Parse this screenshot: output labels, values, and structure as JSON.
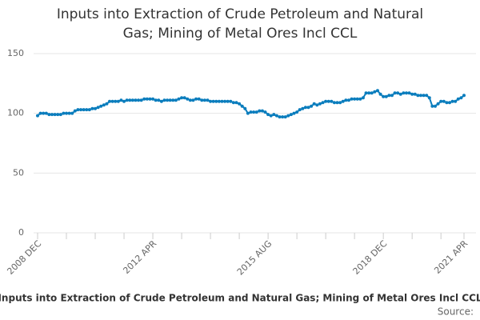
{
  "chart_data": {
    "type": "line",
    "title": "Inputs into Extraction of Crude Petroleum and Natural Gas; Mining of Metal Ores Incl CCL",
    "source": "Source:",
    "categories": [
      "2008 DEC",
      null,
      null,
      null,
      null,
      null,
      null,
      null,
      null,
      null,
      null,
      null,
      null,
      null,
      null,
      null,
      null,
      null,
      null,
      null,
      null,
      null,
      null,
      null,
      null,
      null,
      null,
      null,
      null,
      null,
      null,
      null,
      null,
      null,
      null,
      null,
      null,
      null,
      null,
      null,
      "2012 APR",
      null,
      null,
      null,
      null,
      null,
      null,
      null,
      null,
      null,
      null,
      null,
      null,
      null,
      null,
      null,
      null,
      null,
      null,
      null,
      null,
      null,
      null,
      null,
      null,
      null,
      null,
      null,
      null,
      null,
      null,
      null,
      null,
      null,
      null,
      null,
      null,
      null,
      null,
      null,
      "2015 AUG",
      null,
      null,
      null,
      null,
      null,
      null,
      null,
      null,
      null,
      null,
      null,
      null,
      null,
      null,
      null,
      null,
      null,
      null,
      null,
      null,
      null,
      null,
      null,
      null,
      null,
      null,
      null,
      null,
      null,
      null,
      null,
      null,
      null,
      null,
      null,
      null,
      null,
      null,
      null,
      "2018 DEC",
      null,
      null,
      null,
      null,
      null,
      null,
      null,
      null,
      null,
      null,
      null,
      null,
      null,
      null,
      null,
      null,
      null,
      null,
      null,
      null,
      null,
      null,
      null,
      null,
      null,
      null,
      null,
      "2021 APR"
    ],
    "series": [
      {
        "name": "Inputs into Extraction of Crude Petroleum and Natural Gas; Mining of Metal Ores Incl CCL",
        "color": "#0a7dbd",
        "values": [
          98,
          100,
          100,
          100,
          99,
          99,
          99,
          99,
          99,
          100,
          100,
          100,
          100,
          102,
          103,
          103,
          103,
          103,
          103,
          104,
          104,
          105,
          106,
          107,
          108,
          110,
          110,
          110,
          110,
          111,
          110,
          111,
          111,
          111,
          111,
          111,
          111,
          112,
          112,
          112,
          112,
          111,
          111,
          110,
          111,
          111,
          111,
          111,
          111,
          112,
          113,
          113,
          112,
          111,
          111,
          112,
          112,
          111,
          111,
          111,
          110,
          110,
          110,
          110,
          110,
          110,
          110,
          110,
          109,
          109,
          108,
          106,
          104,
          100,
          101,
          101,
          101,
          102,
          102,
          101,
          99,
          98,
          99,
          98,
          97,
          97,
          97,
          98,
          99,
          100,
          101,
          103,
          104,
          105,
          105,
          106,
          108,
          107,
          108,
          109,
          110,
          110,
          110,
          109,
          109,
          109,
          110,
          111,
          111,
          112,
          112,
          112,
          112,
          113,
          117,
          117,
          117,
          118,
          119,
          116,
          114,
          114,
          115,
          115,
          117,
          117,
          116,
          117,
          117,
          117,
          116,
          116,
          115,
          115,
          115,
          115,
          113,
          106,
          106,
          108,
          110,
          110,
          109,
          109,
          110,
          110,
          112,
          113,
          115
        ]
      }
    ],
    "ylim": [
      0,
      150
    ],
    "yticks": [
      0,
      50,
      100,
      150
    ],
    "grid": true
  }
}
